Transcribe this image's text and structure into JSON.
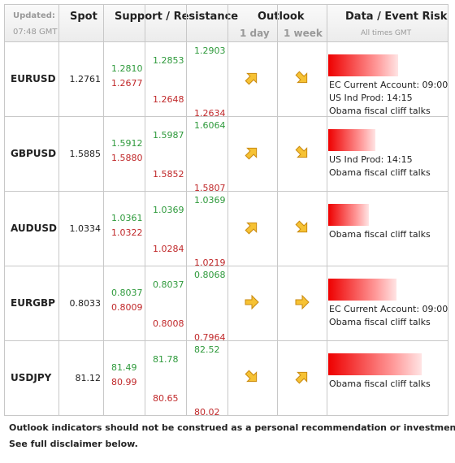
{
  "header": {
    "updated_label": "Updated:",
    "updated_time": "07:48 GMT",
    "spot": "Spot",
    "support_resistance": "Support / Resistance",
    "outlook": "Outlook",
    "day": "1 day",
    "week": "1 week",
    "event_risk": "Data / Event Risk",
    "times_note": "All times GMT"
  },
  "rows": [
    {
      "pair": "EURUSD",
      "spot": "1.2761",
      "levels": [
        [
          "1.2810",
          "1.2677"
        ],
        [
          "1.2853",
          "1.2648"
        ],
        [
          "1.2903",
          "1.2634"
        ]
      ],
      "events": [
        "EC Current Account: 09:00",
        "US Ind Prod: 14:15",
        "Obama fiscal cliff talks"
      ]
    },
    {
      "pair": "GBPUSD",
      "spot": "1.5885",
      "levels": [
        [
          "1.5912",
          "1.5880"
        ],
        [
          "1.5987",
          "1.5852"
        ],
        [
          "1.6064",
          "1.5807"
        ]
      ],
      "events": [
        "US Ind Prod: 14:15",
        "Obama fiscal cliff talks"
      ]
    },
    {
      "pair": "AUDUSD",
      "spot": "1.0334",
      "levels": [
        [
          "1.0361",
          "1.0322"
        ],
        [
          "1.0369",
          "1.0284"
        ],
        [
          "1.0369",
          "1.0219"
        ]
      ],
      "events": [
        "Obama fiscal cliff talks"
      ]
    },
    {
      "pair": "EURGBP",
      "spot": "0.8033",
      "levels": [
        [
          "0.8037",
          "0.8009"
        ],
        [
          "0.8037",
          "0.8008"
        ],
        [
          "0.8068",
          "0.7964"
        ]
      ],
      "events": [
        "EC Current Account: 09:00",
        "Obama fiscal cliff talks"
      ]
    },
    {
      "pair": "USDJPY",
      "spot": "81.12",
      "levels": [
        [
          "81.49",
          "80.99"
        ],
        [
          "81.78",
          "80.65"
        ],
        [
          "82.52",
          "80.02"
        ]
      ],
      "events": [
        "Obama fiscal cliff talks"
      ]
    }
  ],
  "footer": [
    "Outlook indicators should not be construed as a personal recommendation or investment advice.",
    "See full disclaimer below."
  ]
}
